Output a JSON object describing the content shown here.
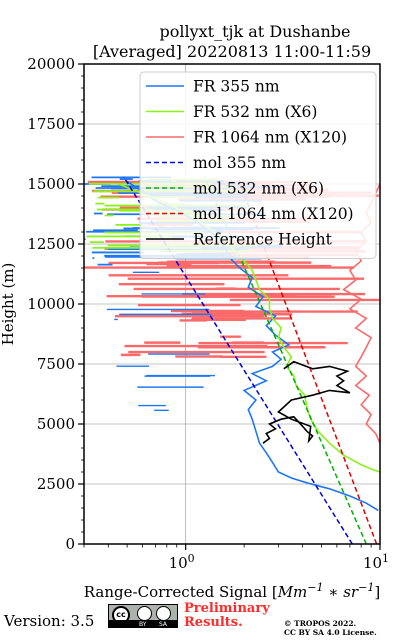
{
  "chart_data": {
    "type": "line",
    "title_line1": "pollyxt_tjk at Dushanbe",
    "title_line2": "[Averaged] 20220813 11:00-11:59",
    "xlabel": "Range-Corrected Signal [Mm^-1 * sr^-1]",
    "ylabel": "Height (m)",
    "xscale": "log",
    "xlim": [
      0.3,
      10
    ],
    "ylim": [
      0,
      20000
    ],
    "xticks": [
      {
        "value": 1,
        "label": "10^0"
      },
      {
        "value": 10,
        "label": "10^1"
      }
    ],
    "yticks": [
      0,
      2500,
      5000,
      7500,
      10000,
      12500,
      15000,
      17500,
      20000
    ],
    "grid": true,
    "legend_placement": "top-right",
    "series": [
      {
        "name": "FR 355 nm",
        "color": "#1f77f0",
        "style": "solid",
        "points": [
          [
            9.8,
            1400
          ],
          [
            8.5,
            1700
          ],
          [
            7,
            2000
          ],
          [
            5.5,
            2300
          ],
          [
            4.2,
            2550
          ],
          [
            3.5,
            2750
          ],
          [
            3,
            3000
          ],
          [
            2.8,
            3400
          ],
          [
            2.6,
            3800
          ],
          [
            2.4,
            4200
          ],
          [
            2.3,
            4700
          ],
          [
            2.2,
            5200
          ],
          [
            2.1,
            5600
          ],
          [
            2.3,
            6000
          ],
          [
            2,
            6400
          ],
          [
            2.6,
            6800
          ],
          [
            2.2,
            7100
          ],
          [
            2.8,
            7400
          ],
          [
            3.1,
            7700
          ],
          [
            2.8,
            8000
          ],
          [
            3.4,
            8300
          ],
          [
            2.9,
            8700
          ],
          [
            2.6,
            9100
          ],
          [
            2.9,
            9500
          ],
          [
            2.3,
            9900
          ],
          [
            2.5,
            10300
          ],
          [
            2.1,
            10700
          ],
          [
            2.2,
            11100
          ],
          [
            1.9,
            11500
          ],
          [
            1.7,
            11900
          ],
          [
            1.6,
            12300
          ],
          [
            1.5,
            12700
          ],
          [
            1.3,
            13100
          ],
          [
            1.1,
            13500
          ],
          [
            0.9,
            13900
          ],
          [
            0.7,
            14300
          ],
          [
            0.6,
            14700
          ],
          [
            0.5,
            15100
          ]
        ]
      },
      {
        "name": "FR 532 nm (X6)",
        "color": "#8cf21c",
        "style": "solid",
        "points": [
          [
            10,
            3000
          ],
          [
            9.2,
            3100
          ],
          [
            8,
            3300
          ],
          [
            6.5,
            3700
          ],
          [
            5.5,
            4200
          ],
          [
            4.8,
            4700
          ],
          [
            4.4,
            5200
          ],
          [
            4.2,
            5700
          ],
          [
            4.1,
            6200
          ],
          [
            3.7,
            6600
          ],
          [
            3.6,
            7000
          ],
          [
            3.3,
            7400
          ],
          [
            3.5,
            7800
          ],
          [
            3.2,
            8200
          ],
          [
            3,
            8600
          ],
          [
            3.1,
            9000
          ],
          [
            2.8,
            9400
          ],
          [
            2.7,
            9800
          ],
          [
            2.7,
            10200
          ],
          [
            2.4,
            10600
          ],
          [
            2.3,
            11000
          ],
          [
            2.2,
            11400
          ],
          [
            2,
            11800
          ],
          [
            1.8,
            12200
          ],
          [
            1.6,
            12600
          ],
          [
            1.4,
            13000
          ],
          [
            1.2,
            13400
          ],
          [
            1,
            13800
          ],
          [
            0.8,
            14200
          ],
          [
            0.6,
            14600
          ],
          [
            0.45,
            15000
          ]
        ]
      },
      {
        "name": "FR 1064 nm (X120)",
        "color": "#fb6a6a",
        "style": "solid",
        "points": [
          [
            10,
            4200
          ],
          [
            9.5,
            4600
          ],
          [
            8.5,
            5000
          ],
          [
            9,
            5400
          ],
          [
            8,
            5800
          ],
          [
            8.8,
            6200
          ],
          [
            7.5,
            6600
          ],
          [
            8.5,
            7000
          ],
          [
            7.5,
            7400
          ],
          [
            8,
            7800
          ],
          [
            8.5,
            8200
          ],
          [
            9,
            8600
          ],
          [
            7.5,
            9000
          ],
          [
            8.5,
            9400
          ],
          [
            7,
            9800
          ],
          [
            8,
            10200
          ],
          [
            6.5,
            10600
          ],
          [
            7.5,
            11000
          ],
          [
            7,
            11400
          ],
          [
            8,
            11800
          ],
          [
            7.5,
            12200
          ],
          [
            8.5,
            12600
          ],
          [
            8,
            13000
          ],
          [
            9,
            13400
          ],
          [
            8.5,
            13800
          ],
          [
            9,
            14200
          ],
          [
            9.5,
            14600
          ],
          [
            10,
            15000
          ]
        ]
      },
      {
        "name": "mol 355 nm",
        "color": "#0000dd",
        "style": "dashed",
        "points": [
          [
            7.2,
            0
          ],
          [
            0.48,
            15300
          ]
        ]
      },
      {
        "name": "mol 532 nm (X6)",
        "color": "#00b000",
        "style": "dashed",
        "points": [
          [
            8.5,
            0
          ],
          [
            1.25,
            15300
          ]
        ]
      },
      {
        "name": "mol 1064 nm (X120)",
        "color": "#dd0000",
        "style": "dashed",
        "points": [
          [
            9.6,
            0
          ],
          [
            1.85,
            15300
          ]
        ]
      },
      {
        "name": "Reference Height",
        "color": "#000000",
        "style": "solid",
        "points": [
          [
            2.5,
            4200
          ],
          [
            2.7,
            4400
          ],
          [
            2.6,
            4600
          ],
          [
            2.9,
            4800
          ],
          [
            2.7,
            5000
          ],
          [
            3.1,
            5200
          ],
          [
            3.6,
            5300
          ],
          [
            3.8,
            5100
          ],
          [
            4,
            4900
          ],
          [
            4.2,
            4700
          ],
          [
            4.5,
            4500
          ],
          [
            4.3,
            4300
          ],
          [
            4.4,
            4900
          ],
          [
            3.5,
            5200
          ],
          [
            3,
            5500
          ],
          [
            3.5,
            6000
          ],
          [
            4.5,
            6200
          ],
          [
            5.5,
            6400
          ],
          [
            7,
            6300
          ],
          [
            6,
            6600
          ],
          [
            6.5,
            6800
          ],
          [
            6,
            7000
          ],
          [
            6.8,
            7200
          ],
          [
            5.5,
            7400
          ],
          [
            4.5,
            7300
          ],
          [
            3.6,
            7600
          ],
          [
            3.2,
            7300
          ]
        ]
      }
    ]
  },
  "footer": {
    "version": "Version: 3.5",
    "prelim_line1": "Preliminary",
    "prelim_line2": "Results.",
    "copy_line1": "© TROPOS 2022.",
    "copy_line2": "CC BY SA 4.0 License.",
    "badge_cc": "cc",
    "badge_by": "BY",
    "badge_sa": "SA"
  }
}
